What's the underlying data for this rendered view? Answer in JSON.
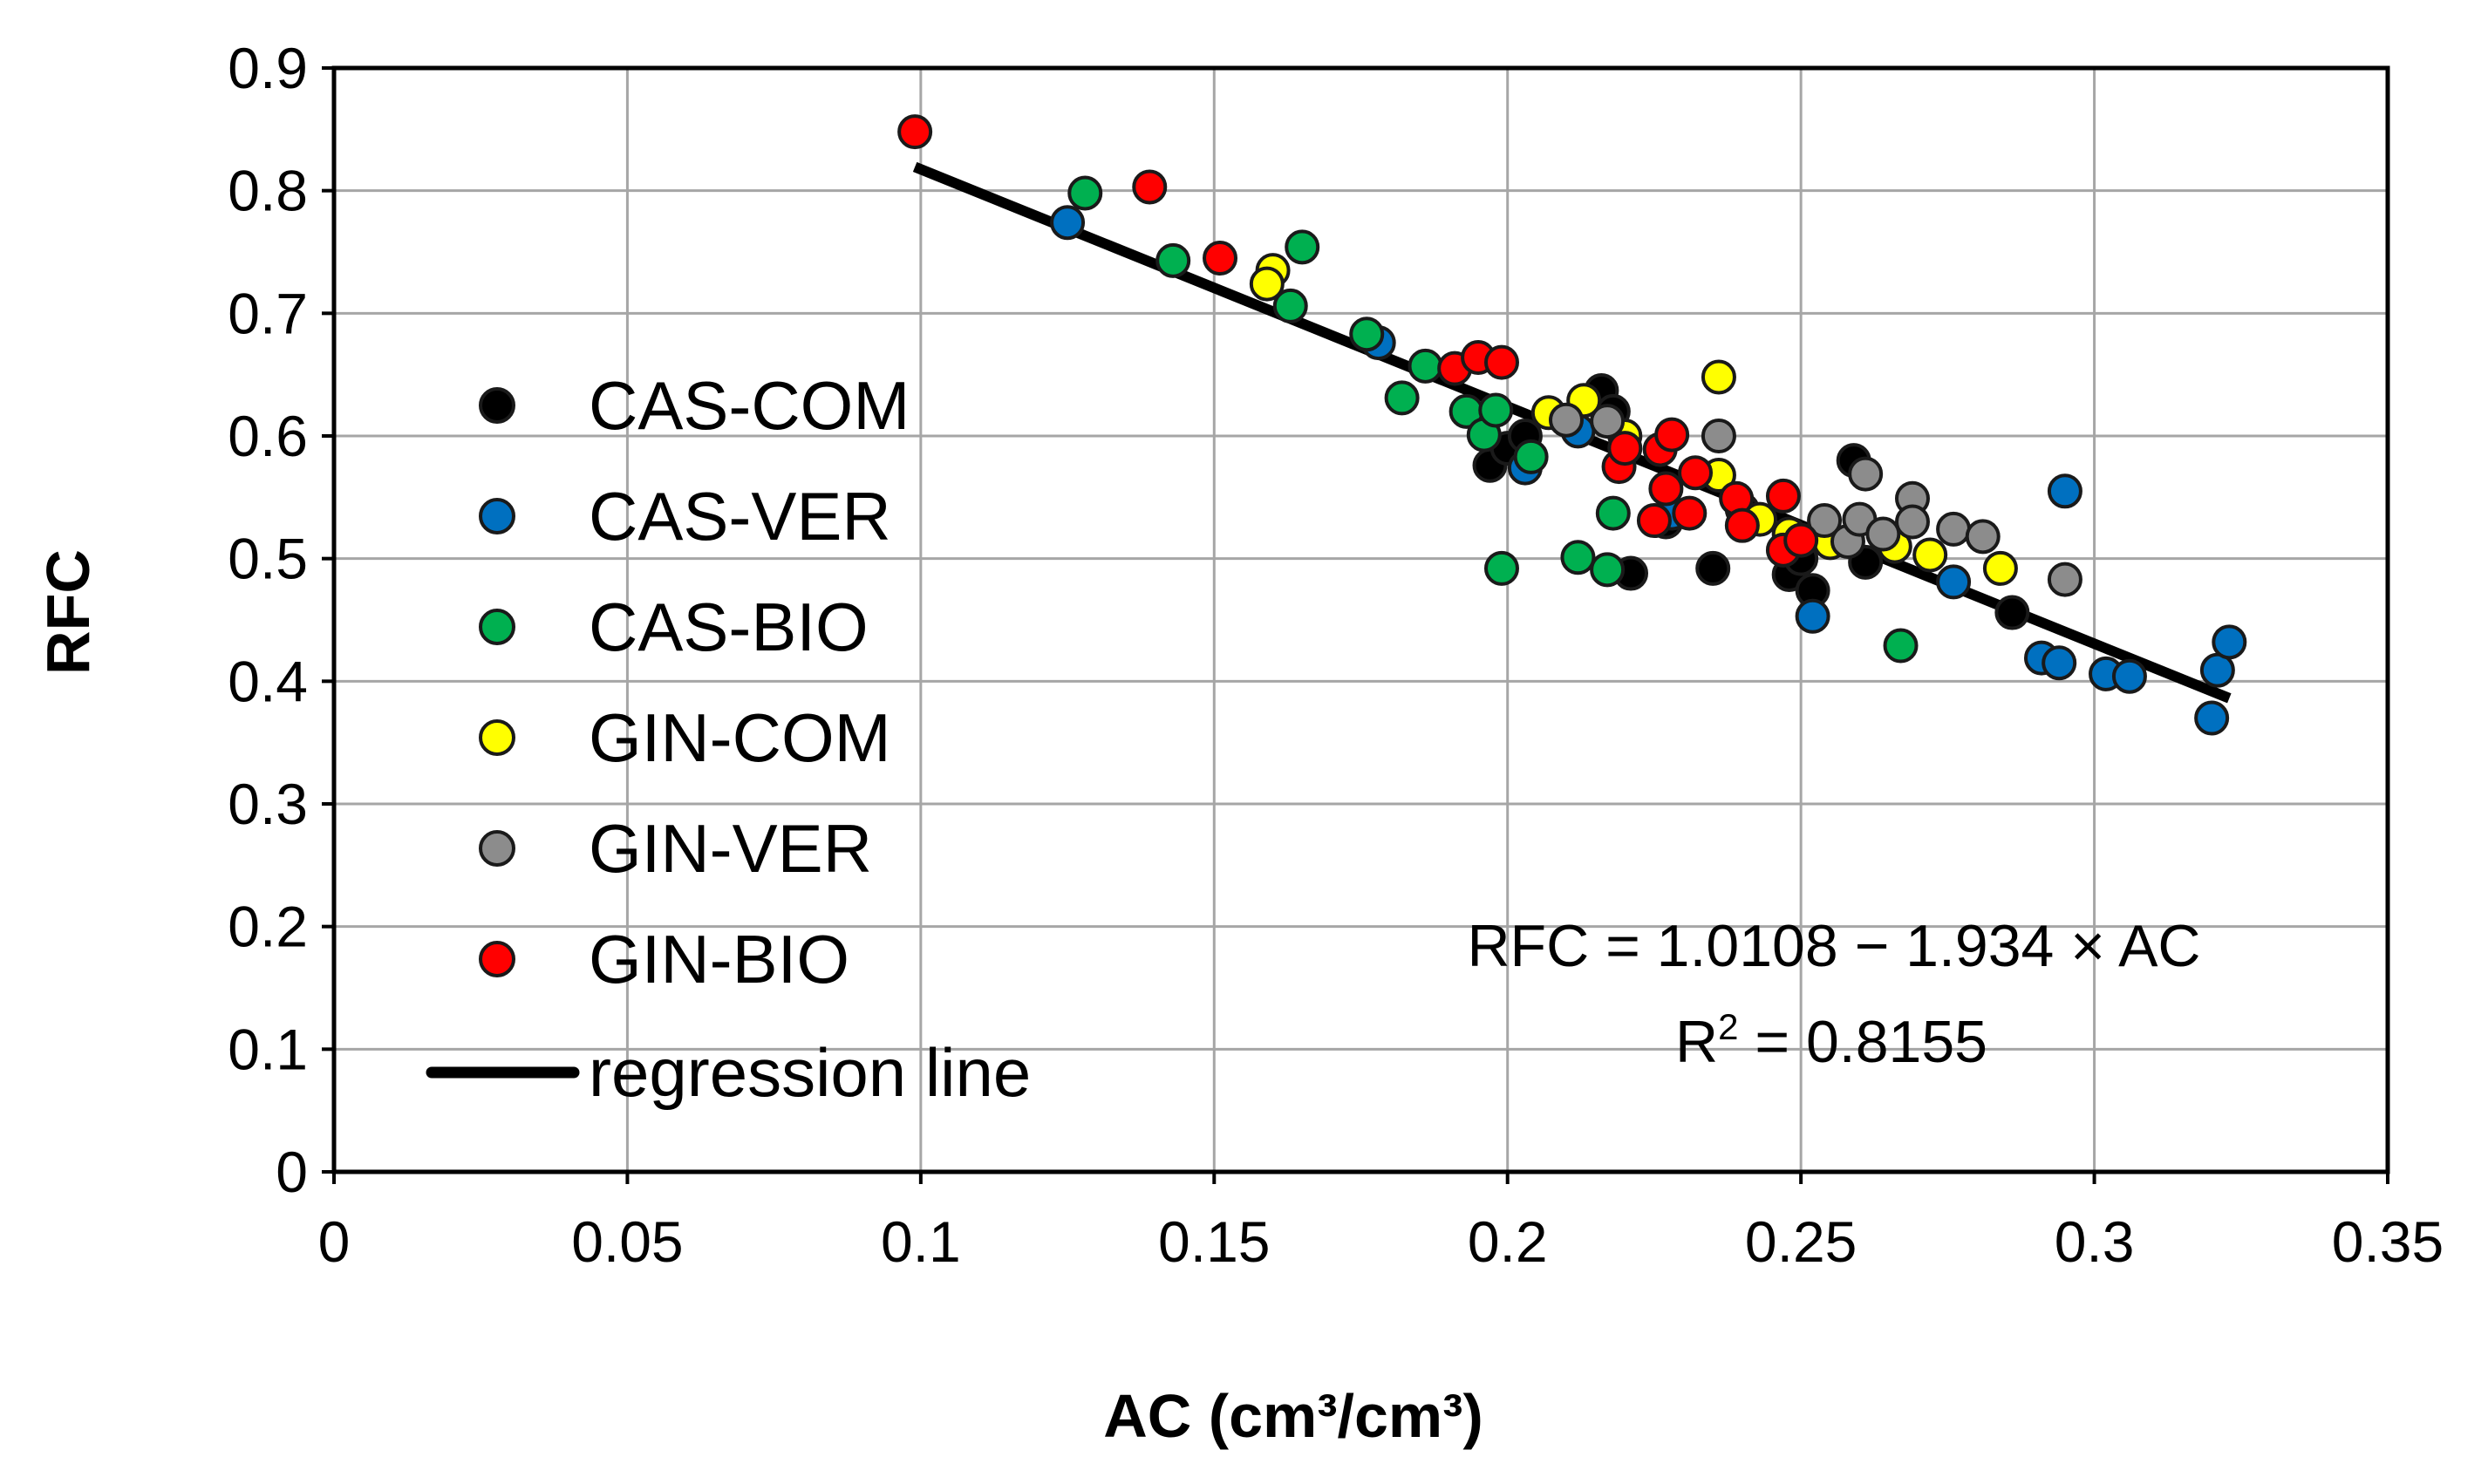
{
  "chart_data": {
    "type": "scatter",
    "title": "",
    "xlabel": "AC (cm³/cm³)",
    "ylabel": "RFC",
    "xlim": [
      0,
      0.35
    ],
    "ylim": [
      0,
      0.9
    ],
    "x_ticks": [
      "0",
      "0.05",
      "0.1",
      "0.15",
      "0.2",
      "0.25",
      "0.3",
      "0.35"
    ],
    "y_ticks": [
      "0",
      "0.1",
      "0.2",
      "0.3",
      "0.4",
      "0.5",
      "0.6",
      "0.7",
      "0.8",
      "0.9"
    ],
    "grid": true,
    "legend_position": "left",
    "series": [
      {
        "name": "CAS-COM",
        "color": "#000000",
        "points": [
          [
            0.197,
            0.576
          ],
          [
            0.2,
            0.59
          ],
          [
            0.203,
            0.6
          ],
          [
            0.216,
            0.637
          ],
          [
            0.221,
            0.488
          ],
          [
            0.235,
            0.492
          ],
          [
            0.227,
            0.53
          ],
          [
            0.248,
            0.487
          ],
          [
            0.25,
            0.5
          ],
          [
            0.252,
            0.474
          ],
          [
            0.259,
            0.58
          ],
          [
            0.261,
            0.497
          ],
          [
            0.286,
            0.456
          ],
          [
            0.218,
            0.62
          ],
          [
            0.24,
            0.54
          ]
        ]
      },
      {
        "name": "CAS-VER",
        "color": "#0070c0",
        "points": [
          [
            0.125,
            0.774
          ],
          [
            0.178,
            0.676
          ],
          [
            0.203,
            0.574
          ],
          [
            0.212,
            0.604
          ],
          [
            0.228,
            0.537
          ],
          [
            0.252,
            0.453
          ],
          [
            0.276,
            0.481
          ],
          [
            0.291,
            0.419
          ],
          [
            0.294,
            0.415
          ],
          [
            0.295,
            0.555
          ],
          [
            0.302,
            0.406
          ],
          [
            0.306,
            0.404
          ],
          [
            0.32,
            0.37
          ],
          [
            0.321,
            0.409
          ],
          [
            0.323,
            0.432
          ]
        ]
      },
      {
        "name": "CAS-BIO",
        "color": "#00b050",
        "points": [
          [
            0.128,
            0.798
          ],
          [
            0.143,
            0.743
          ],
          [
            0.163,
            0.706
          ],
          [
            0.165,
            0.754
          ],
          [
            0.176,
            0.683
          ],
          [
            0.182,
            0.631
          ],
          [
            0.186,
            0.657
          ],
          [
            0.193,
            0.62
          ],
          [
            0.196,
            0.601
          ],
          [
            0.198,
            0.621
          ],
          [
            0.199,
            0.492
          ],
          [
            0.204,
            0.583
          ],
          [
            0.212,
            0.501
          ],
          [
            0.217,
            0.491
          ],
          [
            0.218,
            0.537
          ],
          [
            0.267,
            0.429
          ]
        ]
      },
      {
        "name": "GIN-COM",
        "color": "#ffff00",
        "points": [
          [
            0.16,
            0.735
          ],
          [
            0.159,
            0.724
          ],
          [
            0.207,
            0.619
          ],
          [
            0.213,
            0.629
          ],
          [
            0.22,
            0.6
          ],
          [
            0.236,
            0.648
          ],
          [
            0.236,
            0.568
          ],
          [
            0.243,
            0.532
          ],
          [
            0.248,
            0.52
          ],
          [
            0.255,
            0.513
          ],
          [
            0.266,
            0.51
          ],
          [
            0.272,
            0.503
          ],
          [
            0.284,
            0.492
          ]
        ]
      },
      {
        "name": "GIN-VER",
        "color": "#8c8c8c",
        "points": [
          [
            0.21,
            0.613
          ],
          [
            0.217,
            0.612
          ],
          [
            0.236,
            0.6
          ],
          [
            0.254,
            0.531
          ],
          [
            0.258,
            0.514
          ],
          [
            0.26,
            0.532
          ],
          [
            0.261,
            0.569
          ],
          [
            0.264,
            0.52
          ],
          [
            0.269,
            0.549
          ],
          [
            0.269,
            0.53
          ],
          [
            0.276,
            0.524
          ],
          [
            0.281,
            0.518
          ],
          [
            0.295,
            0.483
          ]
        ]
      },
      {
        "name": "GIN-BIO",
        "color": "#ff0000",
        "points": [
          [
            0.099,
            0.848
          ],
          [
            0.139,
            0.803
          ],
          [
            0.151,
            0.745
          ],
          [
            0.191,
            0.655
          ],
          [
            0.195,
            0.664
          ],
          [
            0.199,
            0.66
          ],
          [
            0.219,
            0.575
          ],
          [
            0.22,
            0.59
          ],
          [
            0.225,
            0.531
          ],
          [
            0.226,
            0.589
          ],
          [
            0.227,
            0.557
          ],
          [
            0.228,
            0.601
          ],
          [
            0.231,
            0.537
          ],
          [
            0.232,
            0.57
          ],
          [
            0.239,
            0.549
          ],
          [
            0.24,
            0.527
          ],
          [
            0.247,
            0.507
          ],
          [
            0.247,
            0.551
          ],
          [
            0.25,
            0.515
          ]
        ]
      }
    ],
    "regression": {
      "name": "regression line",
      "color": "#000000",
      "intercept": 1.0108,
      "slope": -1.934,
      "x_range": [
        0.099,
        0.323
      ]
    },
    "annotations": {
      "equation": "RFC = 1.0108 − 1.934 × AC",
      "r2_prefix": "R",
      "r2_sup": "2",
      "r2_value": " = 0.8155"
    }
  }
}
